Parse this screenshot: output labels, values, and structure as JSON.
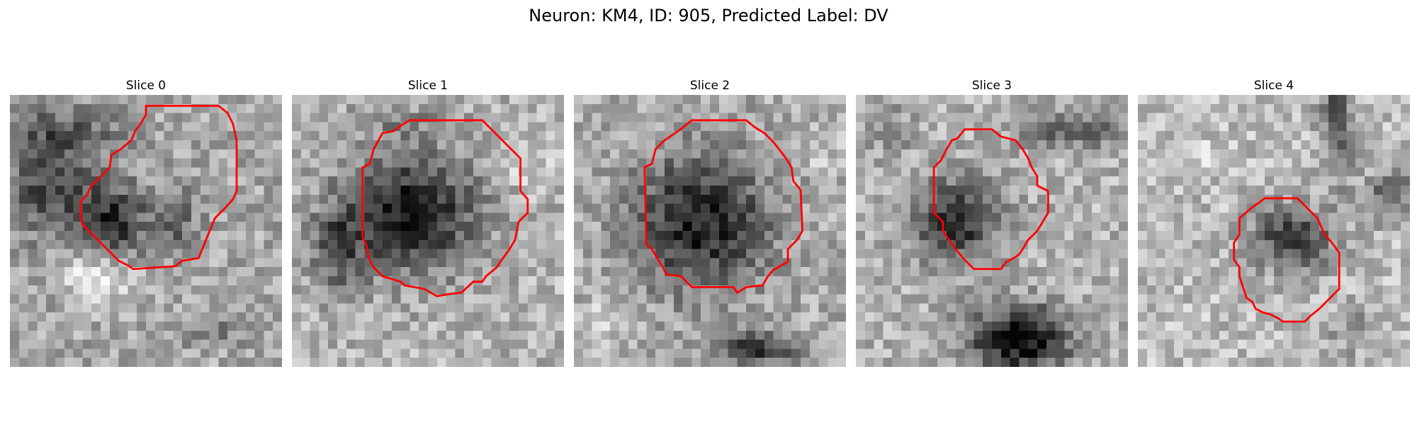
{
  "figure": {
    "title": "Neuron: KM4, ID: 905, Predicted Label: DV"
  },
  "panels": [
    {
      "title": "Slice 0"
    },
    {
      "title": "Slice 1"
    },
    {
      "title": "Slice 2"
    },
    {
      "title": "Slice 3"
    },
    {
      "title": "Slice 4"
    }
  ],
  "contour_color": "#ff0000"
}
